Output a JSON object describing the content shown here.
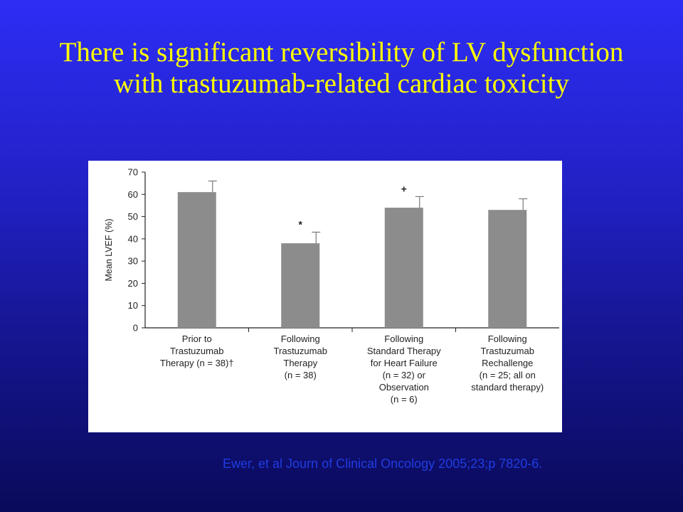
{
  "slide": {
    "title": "There is significant reversibility of LV dysfunction with trastuzumab-related cardiac toxicity",
    "citation": "Ewer, et al Journ of Clinical Oncology 2005;23;p 7820-6.",
    "colors": {
      "title": "#ffff00",
      "citation": "#1f3de0",
      "bar": "#8c8c8c"
    }
  },
  "chart_data": {
    "type": "bar",
    "ylabel": "Mean LVEF (%)",
    "ylim": [
      0,
      70
    ],
    "yticks": [
      "0",
      "10",
      "20",
      "30",
      "40",
      "50",
      "60",
      "70"
    ],
    "grid": false,
    "categories": [
      [
        "Prior to",
        "Trastuzumab",
        "Therapy (n = 38)†"
      ],
      [
        "Following",
        "Trastuzumab",
        "Therapy",
        "(n = 38)"
      ],
      [
        "Following",
        "Standard Therapy",
        "for Heart Failure",
        "(n = 32) or",
        "Observation",
        "(n = 6)"
      ],
      [
        "Following",
        "Trastuzumab",
        "Rechallenge",
        "(n = 25; all on",
        "standard therapy)"
      ]
    ],
    "values": [
      61,
      38,
      54,
      53
    ],
    "error": [
      5,
      5,
      5,
      5
    ],
    "markers": [
      "",
      "*",
      "+",
      ""
    ]
  }
}
